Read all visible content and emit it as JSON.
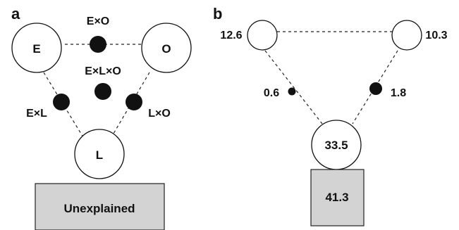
{
  "panel_a": {
    "panel_label": "a",
    "circles": {
      "E": "E",
      "O": "O",
      "L": "L"
    },
    "intersections": {
      "ExO": "E×O",
      "ExLxO": "E×L×O",
      "ExL": "E×L",
      "LxO": "L×O"
    },
    "box_label": "Unexplained"
  },
  "panel_b": {
    "panel_label": "b",
    "circle_values": {
      "top_left": "12.6",
      "top_right": "10.3",
      "bottom": "33.5"
    },
    "intersection_values": {
      "left": "0.6",
      "right": "1.8"
    },
    "box_value": "41.3"
  },
  "colors": {
    "dot": "#111111",
    "box_fill": "#d3d3d3"
  }
}
